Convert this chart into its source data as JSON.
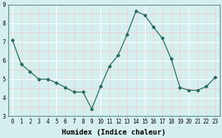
{
  "x": [
    0,
    1,
    2,
    3,
    4,
    5,
    6,
    7,
    8,
    9,
    10,
    11,
    12,
    13,
    14,
    15,
    16,
    17,
    18,
    19,
    20,
    21,
    22,
    23
  ],
  "y": [
    7.1,
    5.8,
    5.4,
    5.0,
    5.0,
    4.8,
    4.55,
    4.3,
    4.3,
    3.4,
    4.6,
    5.7,
    6.3,
    7.4,
    8.65,
    8.45,
    7.8,
    7.2,
    6.1,
    4.55,
    4.4,
    4.4,
    4.6,
    5.1
  ],
  "line_color": "#2e6b5e",
  "marker": "D",
  "marker_size": 2.2,
  "bg_color": "#d5efef",
  "grid_major_color": "#ffffff",
  "grid_minor_color": "#f5c8c8",
  "xlabel": "Humidex (Indice chaleur)",
  "xlabel_fontsize": 7.5,
  "ylim": [
    3,
    9
  ],
  "xlim": [
    -0.5,
    23.5
  ],
  "yticks": [
    3,
    4,
    5,
    6,
    7,
    8,
    9
  ],
  "xticks": [
    0,
    1,
    2,
    3,
    4,
    5,
    6,
    7,
    8,
    9,
    10,
    11,
    12,
    13,
    14,
    15,
    16,
    17,
    18,
    19,
    20,
    21,
    22,
    23
  ],
  "tick_fontsize": 5.5,
  "line_width": 1.0
}
